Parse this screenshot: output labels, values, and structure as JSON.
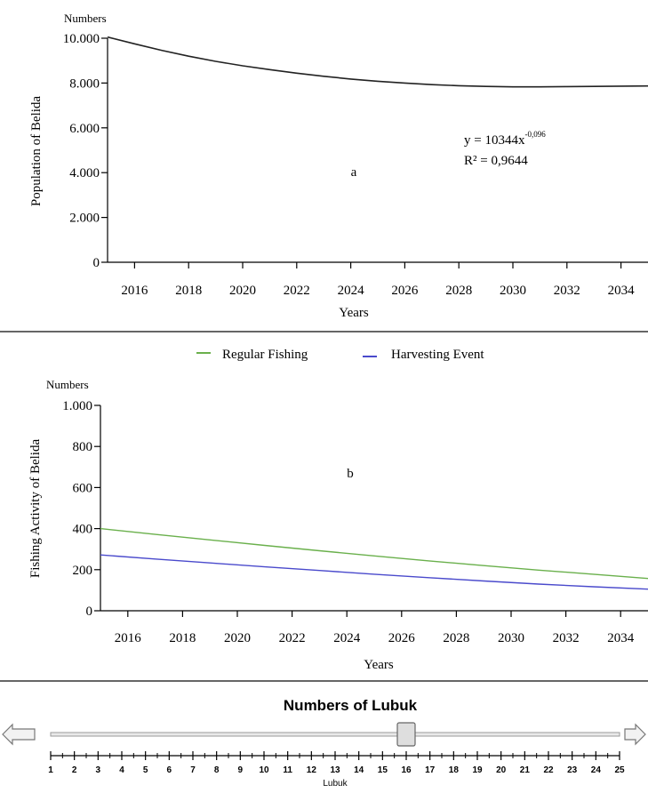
{
  "chart_data": [
    {
      "type": "line",
      "y_unit": "Numbers",
      "ylabel": "Population of Belida",
      "xlabel": "Years",
      "panel_label": "a",
      "equation": "y = 10344x",
      "equation_exponent": "-0,096",
      "r_squared": "R² = 0,9644",
      "xlim": [
        2015,
        2035
      ],
      "ylim": [
        0,
        10000
      ],
      "x_ticks": [
        2016,
        2018,
        2020,
        2022,
        2024,
        2026,
        2028,
        2030,
        2032,
        2034
      ],
      "y_ticks": [
        {
          "value": 0,
          "label": "0"
        },
        {
          "value": 2000,
          "label": "2.000"
        },
        {
          "value": 4000,
          "label": "4.000"
        },
        {
          "value": 6000,
          "label": "6.000"
        },
        {
          "value": 8000,
          "label": "8.000"
        },
        {
          "value": 10000,
          "label": "10.000"
        }
      ],
      "series": [
        {
          "color": "#222222",
          "x": [
            2015,
            2016,
            2017,
            2018,
            2019,
            2020,
            2021,
            2022,
            2023,
            2024,
            2025,
            2026,
            2027,
            2028,
            2029,
            2030,
            2031,
            2032,
            2033,
            2034,
            2035
          ],
          "y": [
            10050,
            9750,
            9460,
            9200,
            8970,
            8770,
            8600,
            8440,
            8300,
            8180,
            8080,
            8000,
            7930,
            7880,
            7850,
            7830,
            7830,
            7840,
            7850,
            7860,
            7870
          ]
        }
      ]
    },
    {
      "type": "line",
      "y_unit": "Numbers",
      "ylabel": "Fishing Activity of Belida",
      "xlabel": "Years",
      "panel_label": "b",
      "legend_position": "top",
      "xlim": [
        2015,
        2035
      ],
      "ylim": [
        0,
        1000
      ],
      "x_ticks": [
        2016,
        2018,
        2020,
        2022,
        2024,
        2026,
        2028,
        2030,
        2032,
        2034
      ],
      "y_ticks": [
        {
          "value": 0,
          "label": "0"
        },
        {
          "value": 200,
          "label": "200"
        },
        {
          "value": 400,
          "label": "400"
        },
        {
          "value": 600,
          "label": "600"
        },
        {
          "value": 800,
          "label": "800"
        },
        {
          "value": 1000,
          "label": "1.000"
        }
      ],
      "series": [
        {
          "name": "Regular Fishing",
          "color": "#6ab04c",
          "x": [
            2015,
            2017,
            2019,
            2021,
            2023,
            2025,
            2027,
            2029,
            2031,
            2033,
            2035
          ],
          "y": [
            400,
            372,
            345,
            318,
            292,
            267,
            243,
            220,
            198,
            178,
            157
          ]
        },
        {
          "name": "Harvesting Event",
          "color": "#4a4acc",
          "x": [
            2015,
            2017,
            2019,
            2021,
            2023,
            2025,
            2027,
            2029,
            2031,
            2033,
            2035
          ],
          "y": [
            272,
            252,
            233,
            214,
            196,
            178,
            161,
            145,
            130,
            117,
            105
          ]
        }
      ]
    }
  ],
  "slider": {
    "title": "Numbers of Lubuk",
    "label": "Lubuk",
    "min": 1,
    "max": 25,
    "value": 16,
    "ticks": [
      "1",
      "2",
      "3",
      "4",
      "5",
      "6",
      "7",
      "8",
      "9",
      "10",
      "11",
      "12",
      "13",
      "14",
      "15",
      "16",
      "17",
      "18",
      "19",
      "20",
      "21",
      "22",
      "23",
      "24",
      "25"
    ]
  }
}
